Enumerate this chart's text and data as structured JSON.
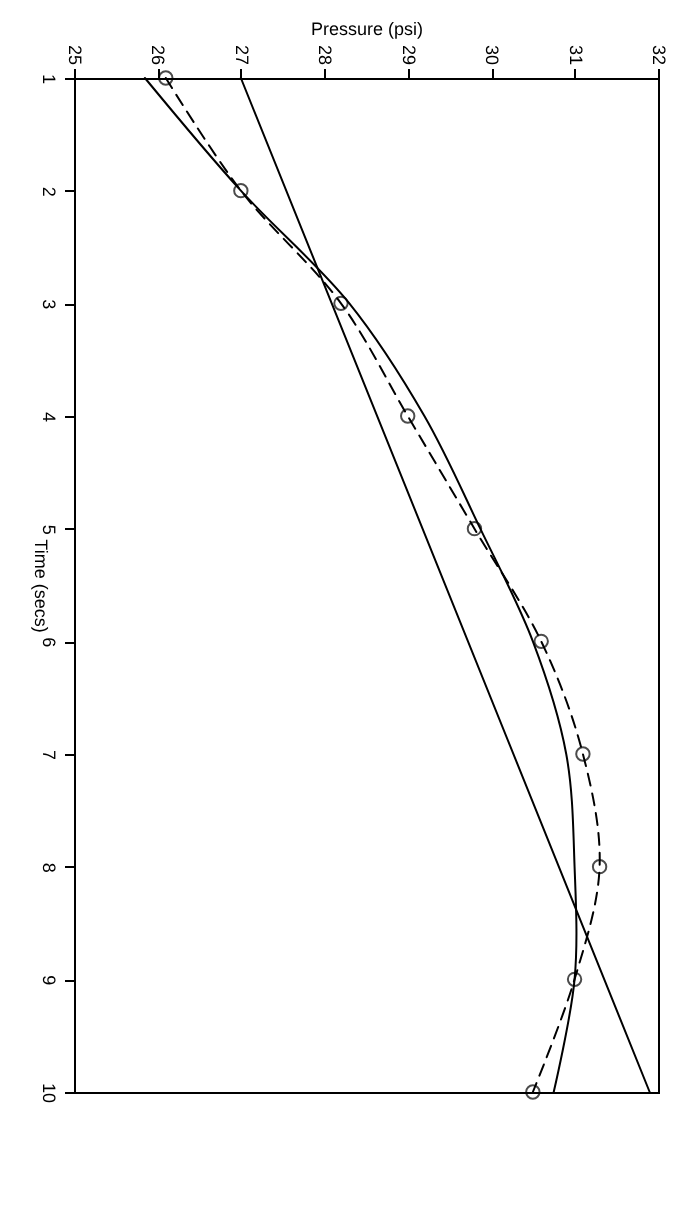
{
  "chart_data": {
    "type": "line",
    "xlabel": "Pressure (psi)",
    "ylabel": "Time  (secs)",
    "xlim": [
      25,
      32
    ],
    "xticks": [
      25,
      26,
      27,
      28,
      29,
      30,
      31,
      32
    ],
    "ylim": [
      10,
      1
    ],
    "yticks": [
      1,
      2,
      3,
      4,
      5,
      6,
      7,
      8,
      9,
      10
    ],
    "grid": false,
    "series": [
      {
        "type": "line",
        "color": "#000000",
        "marker": "circle",
        "line_style": "dashed",
        "x": [
          26.1,
          27.0,
          28.2,
          29.0,
          29.8,
          30.6,
          31.1,
          31.3,
          31.0,
          30.5
        ],
        "values": [
          1,
          2,
          3,
          4,
          5,
          6,
          7,
          8,
          9,
          10
        ]
      },
      {
        "type": "line",
        "color": "#000000",
        "marker": "none",
        "line_style": "solid",
        "x": [
          27.0,
          31.9
        ],
        "values": [
          1,
          10
        ]
      },
      {
        "type": "line",
        "color": "#000000",
        "marker": "none",
        "line_style": "solid",
        "x": [
          25.85,
          27.0,
          28.3,
          29.2,
          29.87,
          30.5,
          30.9,
          31.0,
          31.0,
          30.75
        ],
        "values": [
          1,
          2,
          3,
          4,
          5,
          6,
          7,
          8,
          9,
          10
        ]
      }
    ]
  }
}
